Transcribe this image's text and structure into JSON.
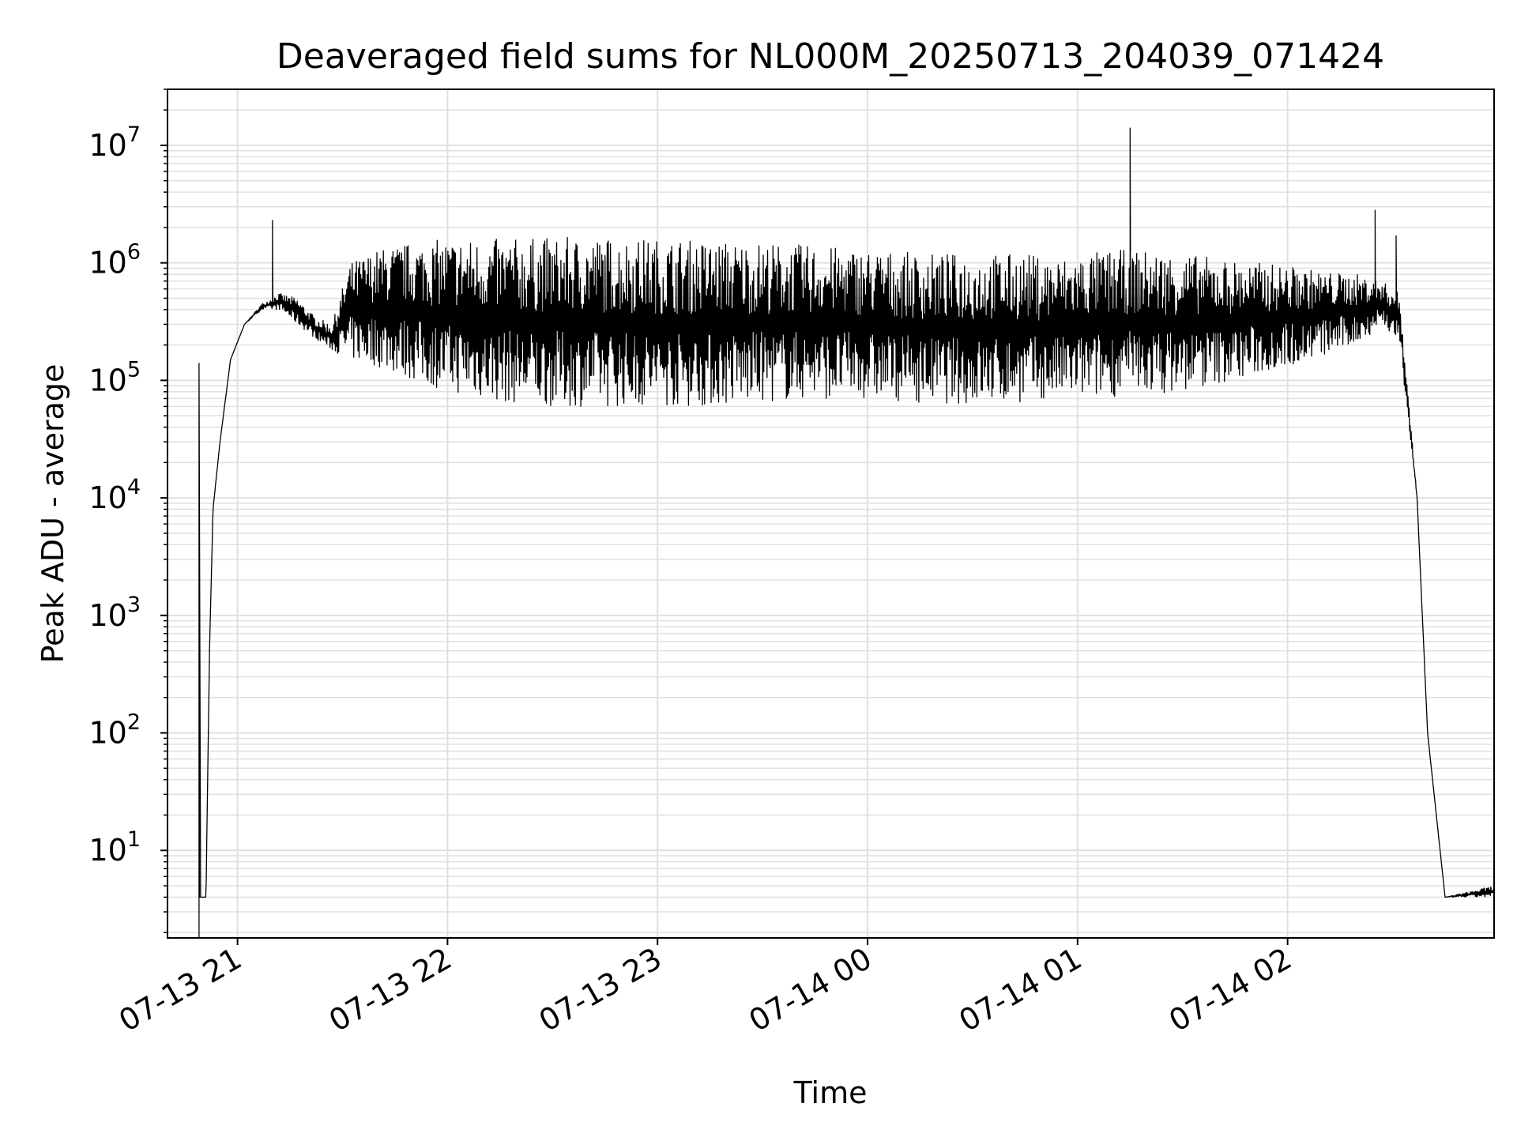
{
  "chart_data": {
    "type": "line",
    "title": "Deaveraged field sums for NL000M_20250713_204039_071424",
    "xlabel": "Time",
    "ylabel": "Peak ADU - average",
    "yscale": "log",
    "grid": true,
    "legend": "none",
    "line_color": "#000000",
    "grid_color": "#e0e0e0",
    "xlim": [
      "2025-07-13 20:40",
      "2025-07-14 02:59"
    ],
    "ylim": [
      1.8,
      30000000
    ],
    "xticks": [
      {
        "value": "2025-07-13 21:00",
        "label": "07-13 21"
      },
      {
        "value": "2025-07-13 22:00",
        "label": "07-13 22"
      },
      {
        "value": "2025-07-13 23:00",
        "label": "07-13 23"
      },
      {
        "value": "2025-07-14 00:00",
        "label": "07-14 00"
      },
      {
        "value": "2025-07-14 01:00",
        "label": "07-14 01"
      },
      {
        "value": "2025-07-14 02:00",
        "label": "07-14 02"
      }
    ],
    "yticks": [
      {
        "value": 10,
        "base": "10",
        "exp": "1"
      },
      {
        "value": 100,
        "base": "10",
        "exp": "2"
      },
      {
        "value": 1000,
        "base": "10",
        "exp": "3"
      },
      {
        "value": 10000,
        "base": "10",
        "exp": "4"
      },
      {
        "value": 100000,
        "base": "10",
        "exp": "5"
      },
      {
        "value": 1000000,
        "base": "10",
        "exp": "6"
      },
      {
        "value": 10000000,
        "base": "10",
        "exp": "7"
      }
    ],
    "series": [
      {
        "envelope": {
          "description_fields": [
            "t",
            "low",
            "high"
          ],
          "x": [
            "2025-07-13 20:50",
            "2025-07-13 20:51",
            "2025-07-13 20:52",
            "2025-07-13 20:53",
            "2025-07-13 20:55",
            "2025-07-13 20:58",
            "2025-07-13 21:02",
            "2025-07-13 21:07",
            "2025-07-13 21:12",
            "2025-07-13 21:17",
            "2025-07-13 21:22",
            "2025-07-13 21:27",
            "2025-07-13 21:32",
            "2025-07-13 21:40",
            "2025-07-13 21:50",
            "2025-07-13 22:00",
            "2025-07-13 22:15",
            "2025-07-13 22:30",
            "2025-07-13 22:45",
            "2025-07-13 23:00",
            "2025-07-13 23:15",
            "2025-07-13 23:30",
            "2025-07-13 23:45",
            "2025-07-14 00:00",
            "2025-07-14 00:15",
            "2025-07-14 00:30",
            "2025-07-14 00:45",
            "2025-07-14 00:55",
            "2025-07-14 01:05",
            "2025-07-14 01:15",
            "2025-07-14 01:30",
            "2025-07-14 01:45",
            "2025-07-14 02:00",
            "2025-07-14 02:10",
            "2025-07-14 02:20",
            "2025-07-14 02:27",
            "2025-07-14 02:32",
            "2025-07-14 02:37",
            "2025-07-14 02:40",
            "2025-07-14 02:45",
            "2025-07-14 02:59"
          ],
          "low": [
            4,
            4,
            500,
            8000,
            30000,
            150000,
            300000,
            400000,
            400000,
            300000,
            230000,
            180000,
            150000,
            130000,
            100000,
            80000,
            65000,
            60000,
            60000,
            60000,
            60000,
            65000,
            70000,
            70000,
            65000,
            62000,
            65000,
            70000,
            70000,
            75000,
            80000,
            100000,
            130000,
            160000,
            200000,
            300000,
            200000,
            10000,
            100,
            4,
            4
          ],
          "high": [
            4,
            4,
            500,
            8000,
            30000,
            150000,
            300000,
            450000,
            550000,
            500000,
            350000,
            300000,
            1000000,
            1300000,
            1500000,
            1600000,
            1600000,
            1650000,
            1650000,
            1600000,
            1550000,
            1500000,
            1400000,
            1300000,
            1200000,
            1200000,
            1200000,
            1100000,
            1250000,
            1300000,
            1200000,
            1050000,
            950000,
            850000,
            800000,
            700000,
            550000,
            10000,
            100,
            4,
            5
          ]
        },
        "spikes": [
          {
            "x": "2025-07-13 20:49",
            "y": 140000
          },
          {
            "x": "2025-07-13 21:10",
            "y": 2300000
          },
          {
            "x": "2025-07-14 01:15",
            "y": 14000000
          },
          {
            "x": "2025-07-14 02:25",
            "y": 2800000
          },
          {
            "x": "2025-07-14 02:31",
            "y": 1700000
          }
        ]
      }
    ]
  }
}
